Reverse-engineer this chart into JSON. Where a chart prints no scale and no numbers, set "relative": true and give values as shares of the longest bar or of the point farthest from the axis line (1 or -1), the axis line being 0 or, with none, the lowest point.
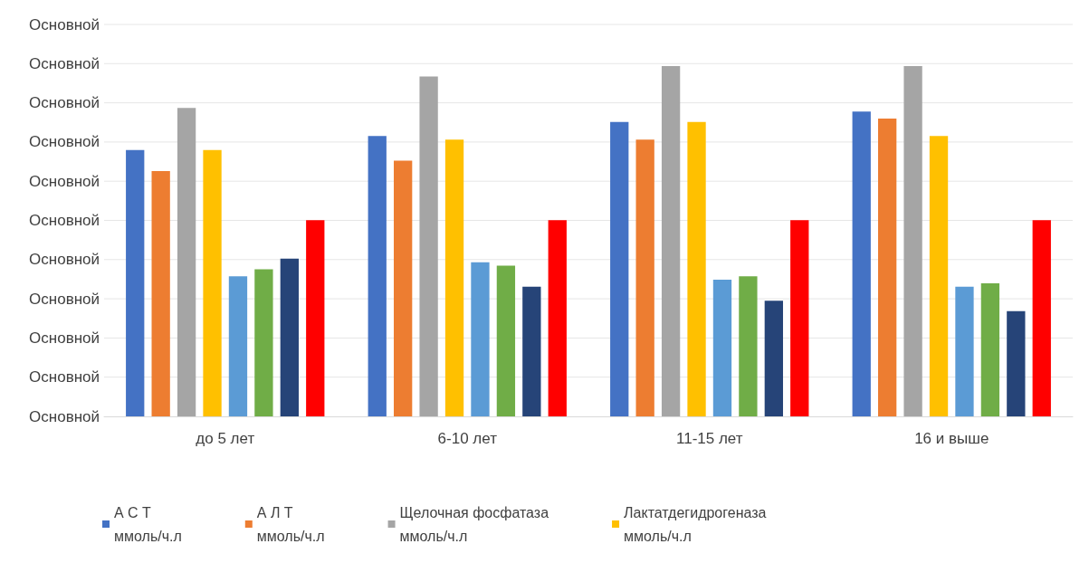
{
  "chart_data": {
    "type": "bar",
    "categories": [
      "до 5 лет",
      "6-10 лет",
      "11-15 лет",
      "16 и выше"
    ],
    "relative": true,
    "annotations": [
      "Основной",
      "Основной",
      "Основной",
      "Основной",
      "Основной",
      "Основной",
      "Основной",
      "Основной",
      "Основной",
      "Основной",
      "Основной"
    ],
    "grid": "y",
    "legend": "bottom",
    "series": [
      {
        "name": "А С Т ммоль/ч.л",
        "color": "#4472c4",
        "values": [
          0.76,
          0.8,
          0.84,
          0.87
        ]
      },
      {
        "name": "А Л Т ммоль/ч.л",
        "color": "#ed7d31",
        "values": [
          0.7,
          0.73,
          0.79,
          0.85
        ]
      },
      {
        "name": "Щелочная фосфатаза ммоль/ч.л",
        "color": "#a5a5a5",
        "values": [
          0.88,
          0.97,
          1,
          1
        ]
      },
      {
        "name": "Лактатдегидрогеназа ммоль/ч.л",
        "color": "#ffc000",
        "values": [
          0.76,
          0.79,
          0.84,
          0.8
        ]
      },
      {
        "color": "#5b9bd5",
        "values": [
          0.4,
          0.44,
          0.39,
          0.37
        ]
      },
      {
        "color": "#70ad47",
        "values": [
          0.42,
          0.43,
          0.4,
          0.38
        ]
      },
      {
        "color": "#264478",
        "values": [
          0.45,
          0.37,
          0.33,
          0.3
        ]
      },
      {
        "color": "#ff0000",
        "values": [
          0.56,
          0.56,
          0.56,
          0.56
        ]
      }
    ]
  }
}
